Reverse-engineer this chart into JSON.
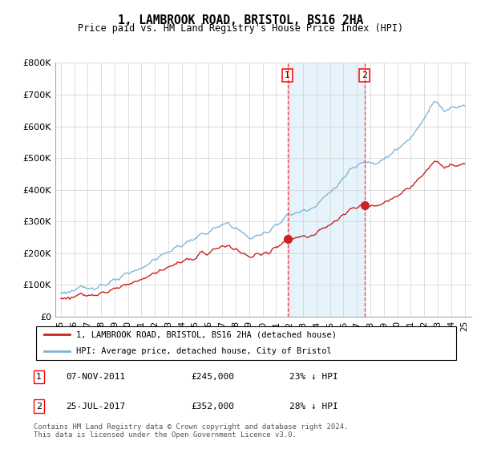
{
  "title": "1, LAMBROOK ROAD, BRISTOL, BS16 2HA",
  "subtitle": "Price paid vs. HM Land Registry's House Price Index (HPI)",
  "ylim": [
    0,
    800000
  ],
  "yticks": [
    0,
    100000,
    200000,
    300000,
    400000,
    500000,
    600000,
    700000,
    800000
  ],
  "ytick_labels": [
    "£0",
    "£100K",
    "£200K",
    "£300K",
    "£400K",
    "£500K",
    "£600K",
    "£700K",
    "£800K"
  ],
  "hpi_line_color": "#7ab3d8",
  "property_color": "#cc2222",
  "sale1_year": 2011.85,
  "sale1_price": 245000,
  "sale2_year": 2017.56,
  "sale2_price": 352000,
  "legend_label1": "1, LAMBROOK ROAD, BRISTOL, BS16 2HA (detached house)",
  "legend_label2": "HPI: Average price, detached house, City of Bristol",
  "annotation1_text": "07-NOV-2011",
  "annotation1_price": "£245,000",
  "annotation1_hpi": "23% ↓ HPI",
  "annotation2_text": "25-JUL-2017",
  "annotation2_price": "£352,000",
  "annotation2_hpi": "28% ↓ HPI",
  "footer": "Contains HM Land Registry data © Crown copyright and database right 2024.\nThis data is licensed under the Open Government Licence v3.0.",
  "bg_color": "#ffffff",
  "shade_color": "#ddeefa",
  "grid_color": "#cccccc"
}
